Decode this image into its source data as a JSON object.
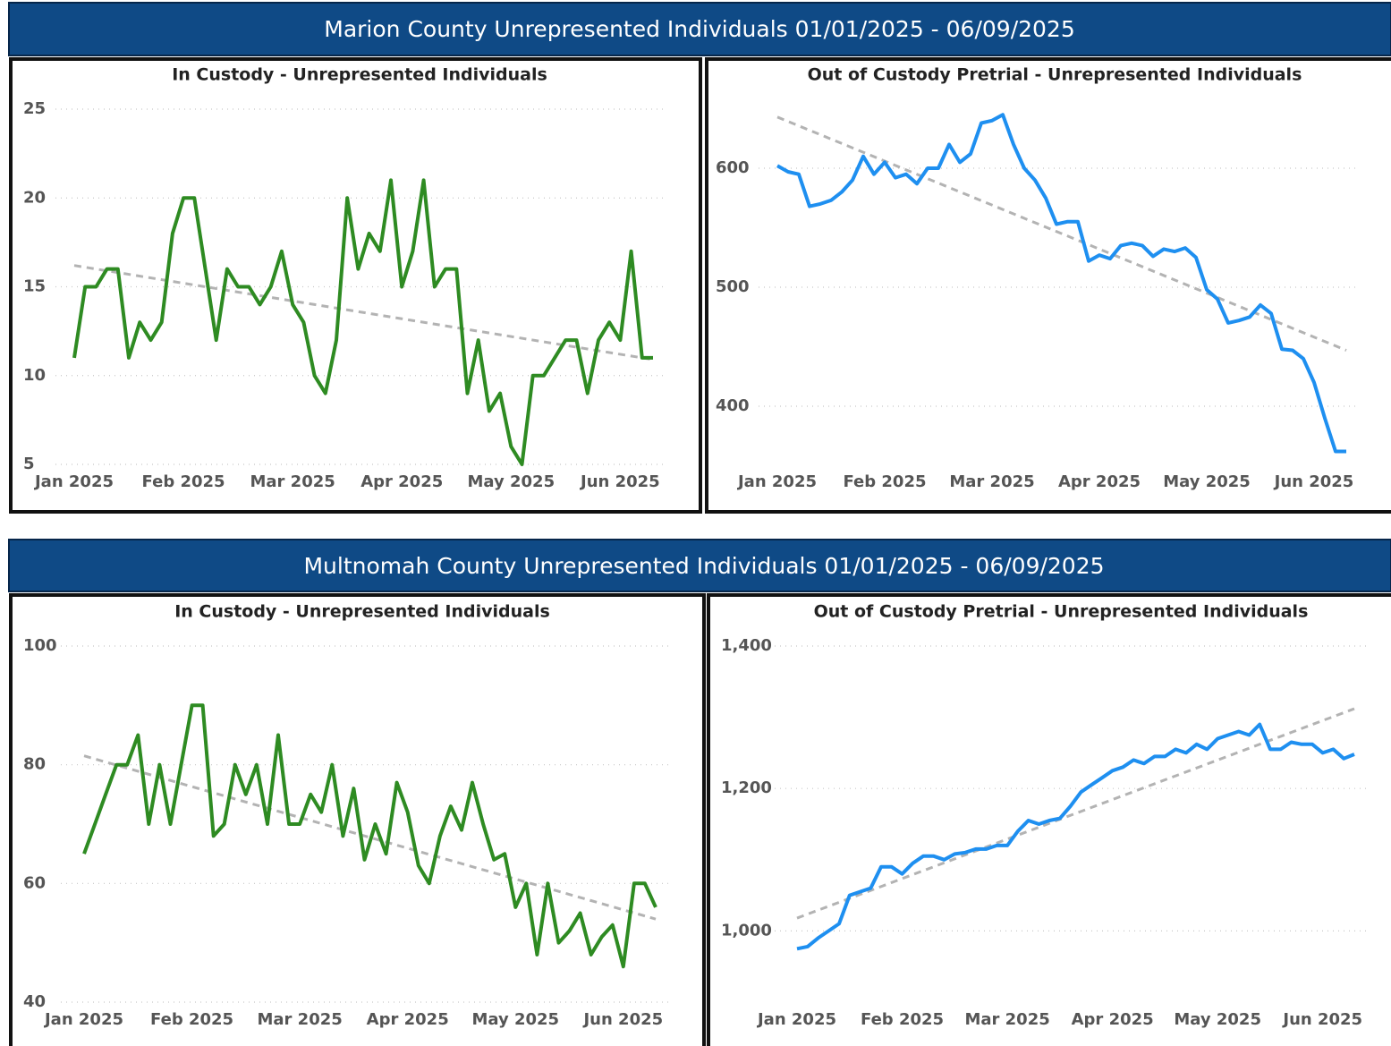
{
  "headers": [
    "Marion County Unrepresented Individuals 01/01/2025 - 06/09/2025",
    "Multnomah County Unrepresented Individuals 01/01/2025 - 06/09/2025"
  ],
  "chart_data": [
    {
      "type": "line",
      "title": "In Custody - Unrepresented Individuals",
      "categories": [
        "Jan 2025",
        null,
        null,
        null,
        null,
        null,
        null,
        null,
        null,
        null,
        "Feb 2025",
        null,
        null,
        null,
        null,
        null,
        null,
        null,
        null,
        null,
        "Mar 2025",
        null,
        null,
        null,
        null,
        null,
        null,
        null,
        null,
        null,
        "Apr 2025",
        null,
        null,
        null,
        null,
        null,
        null,
        null,
        null,
        null,
        "May 2025",
        null,
        null,
        null,
        null,
        null,
        null,
        null,
        null,
        null,
        "Jun 2025",
        null,
        null,
        null
      ],
      "values": [
        11,
        15,
        15,
        16,
        16,
        11,
        13,
        12,
        13,
        18,
        20,
        20,
        16,
        12,
        16,
        15,
        15,
        14,
        15,
        17,
        14,
        13,
        10,
        9,
        12,
        20,
        16,
        18,
        17,
        21,
        15,
        17,
        21,
        15,
        16,
        16,
        9,
        12,
        8,
        9,
        6,
        5,
        10,
        10,
        11,
        12,
        12,
        9,
        12,
        13,
        12,
        17,
        11,
        11
      ],
      "color": "#2e8b22",
      "trend": {
        "values": [
          16.2,
          10.9
        ],
        "color": "#b3b3b3"
      },
      "ylim": [
        5,
        25
      ],
      "yticks": [
        5,
        10,
        15,
        20,
        25
      ],
      "grid": true
    },
    {
      "type": "line",
      "title": "Out of Custody Pretrial - Unrepresented Individuals",
      "categories": [
        "Jan 2025",
        null,
        null,
        null,
        null,
        null,
        null,
        null,
        null,
        null,
        "Feb 2025",
        null,
        null,
        null,
        null,
        null,
        null,
        null,
        null,
        null,
        "Mar 2025",
        null,
        null,
        null,
        null,
        null,
        null,
        null,
        null,
        null,
        "Apr 2025",
        null,
        null,
        null,
        null,
        null,
        null,
        null,
        null,
        null,
        "May 2025",
        null,
        null,
        null,
        null,
        null,
        null,
        null,
        null,
        null,
        "Jun 2025",
        null,
        null,
        null
      ],
      "values": [
        602,
        597,
        595,
        568,
        570,
        573,
        580,
        590,
        610,
        595,
        605,
        592,
        595,
        587,
        600,
        600,
        620,
        605,
        612,
        638,
        640,
        645,
        620,
        600,
        590,
        575,
        553,
        555,
        555,
        522,
        527,
        524,
        535,
        537,
        535,
        526,
        532,
        530,
        533,
        525,
        498,
        490,
        470,
        472,
        475,
        485,
        478,
        448,
        447,
        440,
        420,
        390,
        362,
        362
      ],
      "color": "#1e8ff0",
      "trend": {
        "values": [
          643,
          447
        ],
        "color": "#b3b3b3"
      },
      "ylim": [
        350,
        650
      ],
      "yticks": [
        400,
        500,
        600
      ],
      "grid": true
    },
    {
      "type": "line",
      "title": "In Custody - Unrepresented Individuals",
      "categories": [
        "Jan 2025",
        null,
        null,
        null,
        null,
        null,
        null,
        null,
        null,
        null,
        "Feb 2025",
        null,
        null,
        null,
        null,
        null,
        null,
        null,
        null,
        null,
        "Mar 2025",
        null,
        null,
        null,
        null,
        null,
        null,
        null,
        null,
        null,
        "Apr 2025",
        null,
        null,
        null,
        null,
        null,
        null,
        null,
        null,
        null,
        "May 2025",
        null,
        null,
        null,
        null,
        null,
        null,
        null,
        null,
        null,
        "Jun 2025",
        null,
        null,
        null
      ],
      "values": [
        65,
        70,
        75,
        80,
        80,
        85,
        70,
        80,
        70,
        80,
        90,
        90,
        68,
        70,
        80,
        75,
        80,
        70,
        85,
        70,
        70,
        75,
        72,
        80,
        68,
        76,
        64,
        70,
        65,
        77,
        72,
        63,
        60,
        68,
        73,
        69,
        77,
        70,
        64,
        65,
        56,
        60,
        48,
        60,
        50,
        52,
        55,
        48,
        51,
        53,
        46,
        60,
        60,
        56
      ],
      "color": "#2e8b22",
      "trend": {
        "values": [
          81.5,
          54
        ],
        "color": "#b3b3b3"
      },
      "ylim": [
        40,
        100
      ],
      "yticks": [
        40,
        60,
        80,
        100
      ],
      "grid": true
    },
    {
      "type": "line",
      "title": "Out of Custody Pretrial - Unrepresented Individuals",
      "categories": [
        "Jan 2025",
        null,
        null,
        null,
        null,
        null,
        null,
        null,
        null,
        null,
        "Feb 2025",
        null,
        null,
        null,
        null,
        null,
        null,
        null,
        null,
        null,
        "Mar 2025",
        null,
        null,
        null,
        null,
        null,
        null,
        null,
        null,
        null,
        "Apr 2025",
        null,
        null,
        null,
        null,
        null,
        null,
        null,
        null,
        null,
        "May 2025",
        null,
        null,
        null,
        null,
        null,
        null,
        null,
        null,
        null,
        "Jun 2025",
        null,
        null,
        null
      ],
      "values": [
        975,
        978,
        990,
        1000,
        1010,
        1050,
        1055,
        1060,
        1090,
        1090,
        1080,
        1095,
        1105,
        1105,
        1100,
        1108,
        1110,
        1115,
        1115,
        1120,
        1120,
        1140,
        1155,
        1150,
        1155,
        1158,
        1175,
        1195,
        1205,
        1215,
        1225,
        1230,
        1240,
        1235,
        1245,
        1245,
        1255,
        1250,
        1262,
        1255,
        1270,
        1275,
        1280,
        1275,
        1290,
        1255,
        1255,
        1265,
        1262,
        1262,
        1250,
        1255,
        1242,
        1248
      ],
      "color": "#1e8ff0",
      "trend": {
        "values": [
          1018,
          1312
        ],
        "color": "#b3b3b3"
      },
      "ylim": [
        900,
        1400
      ],
      "yticks": [
        {
          "value": 1000,
          "label": "1,000"
        },
        {
          "value": 1200,
          "label": "1,200"
        },
        {
          "value": 1400,
          "label": "1,400"
        }
      ],
      "grid": true
    }
  ]
}
